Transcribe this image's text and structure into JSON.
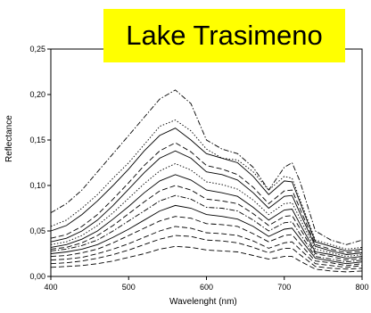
{
  "chart_data": {
    "type": "line",
    "title": "Lake Trasimeno",
    "xlabel": "Wavelenght (nm)",
    "ylabel": "Reflectance",
    "xlim": [
      400,
      800
    ],
    "ylim": [
      0,
      0.25
    ],
    "x_ticks": [
      "400",
      "500",
      "600",
      "700",
      "800"
    ],
    "y_ticks": [
      "0,00",
      "0,05",
      "0,10",
      "0,15",
      "0,20",
      "0,25"
    ],
    "grid": false,
    "legend": "none",
    "x": [
      400,
      420,
      440,
      460,
      480,
      500,
      520,
      540,
      560,
      580,
      600,
      620,
      640,
      660,
      680,
      700,
      710,
      720,
      740,
      760,
      780,
      800
    ],
    "series": [
      {
        "values": [
          0.07,
          0.08,
          0.095,
          0.115,
          0.135,
          0.155,
          0.175,
          0.195,
          0.205,
          0.19,
          0.15,
          0.14,
          0.135,
          0.12,
          0.095,
          0.12,
          0.125,
          0.105,
          0.05,
          0.04,
          0.035,
          0.04
        ],
        "style": "dashdot"
      },
      {
        "values": [
          0.055,
          0.062,
          0.075,
          0.09,
          0.108,
          0.125,
          0.145,
          0.165,
          0.172,
          0.16,
          0.14,
          0.13,
          0.128,
          0.115,
          0.095,
          0.11,
          0.108,
          0.085,
          0.04,
          0.035,
          0.03,
          0.032
        ],
        "style": "dotted"
      },
      {
        "values": [
          0.05,
          0.056,
          0.068,
          0.083,
          0.1,
          0.118,
          0.138,
          0.155,
          0.163,
          0.15,
          0.135,
          0.13,
          0.125,
          0.11,
          0.09,
          0.105,
          0.104,
          0.082,
          0.038,
          0.033,
          0.028,
          0.03
        ],
        "style": "solid"
      },
      {
        "values": [
          0.042,
          0.046,
          0.055,
          0.068,
          0.085,
          0.103,
          0.122,
          0.138,
          0.147,
          0.137,
          0.122,
          0.118,
          0.112,
          0.098,
          0.08,
          0.094,
          0.095,
          0.075,
          0.035,
          0.03,
          0.026,
          0.028
        ],
        "style": "dashed"
      },
      {
        "values": [
          0.038,
          0.042,
          0.05,
          0.062,
          0.078,
          0.096,
          0.114,
          0.13,
          0.138,
          0.13,
          0.115,
          0.112,
          0.106,
          0.092,
          0.075,
          0.088,
          0.089,
          0.07,
          0.033,
          0.028,
          0.024,
          0.026
        ],
        "style": "solid"
      },
      {
        "values": [
          0.035,
          0.038,
          0.045,
          0.056,
          0.07,
          0.086,
          0.102,
          0.116,
          0.124,
          0.117,
          0.104,
          0.101,
          0.096,
          0.084,
          0.068,
          0.08,
          0.081,
          0.064,
          0.03,
          0.026,
          0.022,
          0.024
        ],
        "style": "dotted"
      },
      {
        "values": [
          0.032,
          0.035,
          0.041,
          0.05,
          0.063,
          0.077,
          0.092,
          0.105,
          0.112,
          0.106,
          0.095,
          0.092,
          0.088,
          0.076,
          0.062,
          0.073,
          0.074,
          0.058,
          0.027,
          0.024,
          0.02,
          0.022
        ],
        "style": "solid"
      },
      {
        "values": [
          0.03,
          0.032,
          0.037,
          0.045,
          0.056,
          0.069,
          0.082,
          0.094,
          0.1,
          0.095,
          0.085,
          0.083,
          0.08,
          0.069,
          0.056,
          0.066,
          0.067,
          0.053,
          0.025,
          0.022,
          0.018,
          0.02
        ],
        "style": "dashed"
      },
      {
        "values": [
          0.028,
          0.03,
          0.034,
          0.04,
          0.05,
          0.061,
          0.072,
          0.083,
          0.089,
          0.085,
          0.076,
          0.075,
          0.072,
          0.062,
          0.05,
          0.059,
          0.06,
          0.047,
          0.022,
          0.019,
          0.016,
          0.018
        ],
        "style": "dashdot"
      },
      {
        "values": [
          0.025,
          0.027,
          0.03,
          0.035,
          0.043,
          0.052,
          0.062,
          0.072,
          0.078,
          0.075,
          0.068,
          0.066,
          0.063,
          0.055,
          0.044,
          0.052,
          0.053,
          0.042,
          0.02,
          0.017,
          0.014,
          0.016
        ],
        "style": "solid"
      },
      {
        "values": [
          0.022,
          0.023,
          0.026,
          0.03,
          0.037,
          0.045,
          0.053,
          0.061,
          0.066,
          0.064,
          0.058,
          0.057,
          0.055,
          0.047,
          0.038,
          0.045,
          0.046,
          0.036,
          0.017,
          0.015,
          0.012,
          0.014
        ],
        "style": "dashed"
      },
      {
        "values": [
          0.018,
          0.019,
          0.021,
          0.025,
          0.03,
          0.036,
          0.043,
          0.05,
          0.055,
          0.053,
          0.048,
          0.047,
          0.045,
          0.039,
          0.031,
          0.037,
          0.038,
          0.03,
          0.014,
          0.012,
          0.01,
          0.012
        ],
        "style": "dashed"
      },
      {
        "values": [
          0.014,
          0.015,
          0.017,
          0.02,
          0.024,
          0.029,
          0.035,
          0.041,
          0.045,
          0.044,
          0.04,
          0.039,
          0.037,
          0.032,
          0.026,
          0.031,
          0.031,
          0.024,
          0.011,
          0.009,
          0.008,
          0.009
        ],
        "style": "dashed"
      },
      {
        "values": [
          0.01,
          0.011,
          0.012,
          0.014,
          0.017,
          0.021,
          0.025,
          0.03,
          0.033,
          0.032,
          0.029,
          0.028,
          0.027,
          0.023,
          0.019,
          0.022,
          0.022,
          0.017,
          0.008,
          0.006,
          0.005,
          0.006
        ],
        "style": "dashed"
      }
    ]
  }
}
